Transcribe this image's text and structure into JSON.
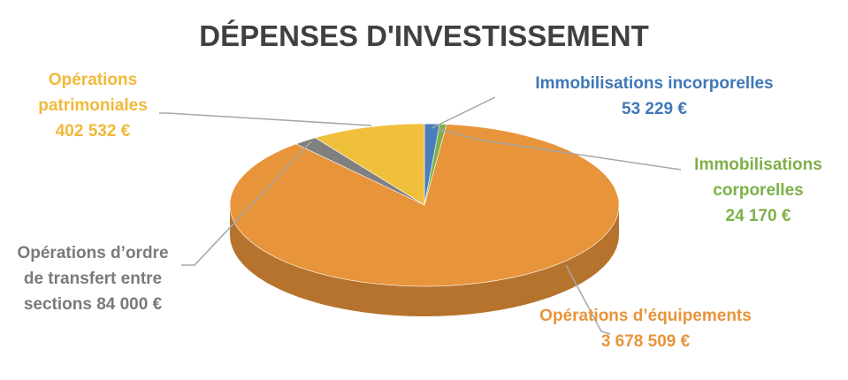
{
  "chart_data": {
    "type": "pie",
    "title": "DÉPENSES D'INVESTISSEMENT",
    "categories": [
      "Immobilisations incorporelles",
      "Immobilisations corporelles",
      "Opérations d’équipements",
      "Opérations d’ordre de transfert entre sections",
      "Opérations patrimoniales"
    ],
    "values": [
      53229,
      24170,
      3678509,
      84000,
      402532
    ],
    "value_labels": [
      "53 229 €",
      "24 170 €",
      "3 678 509 €",
      "84 000 €",
      "402 532 €"
    ],
    "colors": [
      "#4a7ebb",
      "#80b24c",
      "#e8943a",
      "#808080",
      "#f0bf3c"
    ]
  }
}
